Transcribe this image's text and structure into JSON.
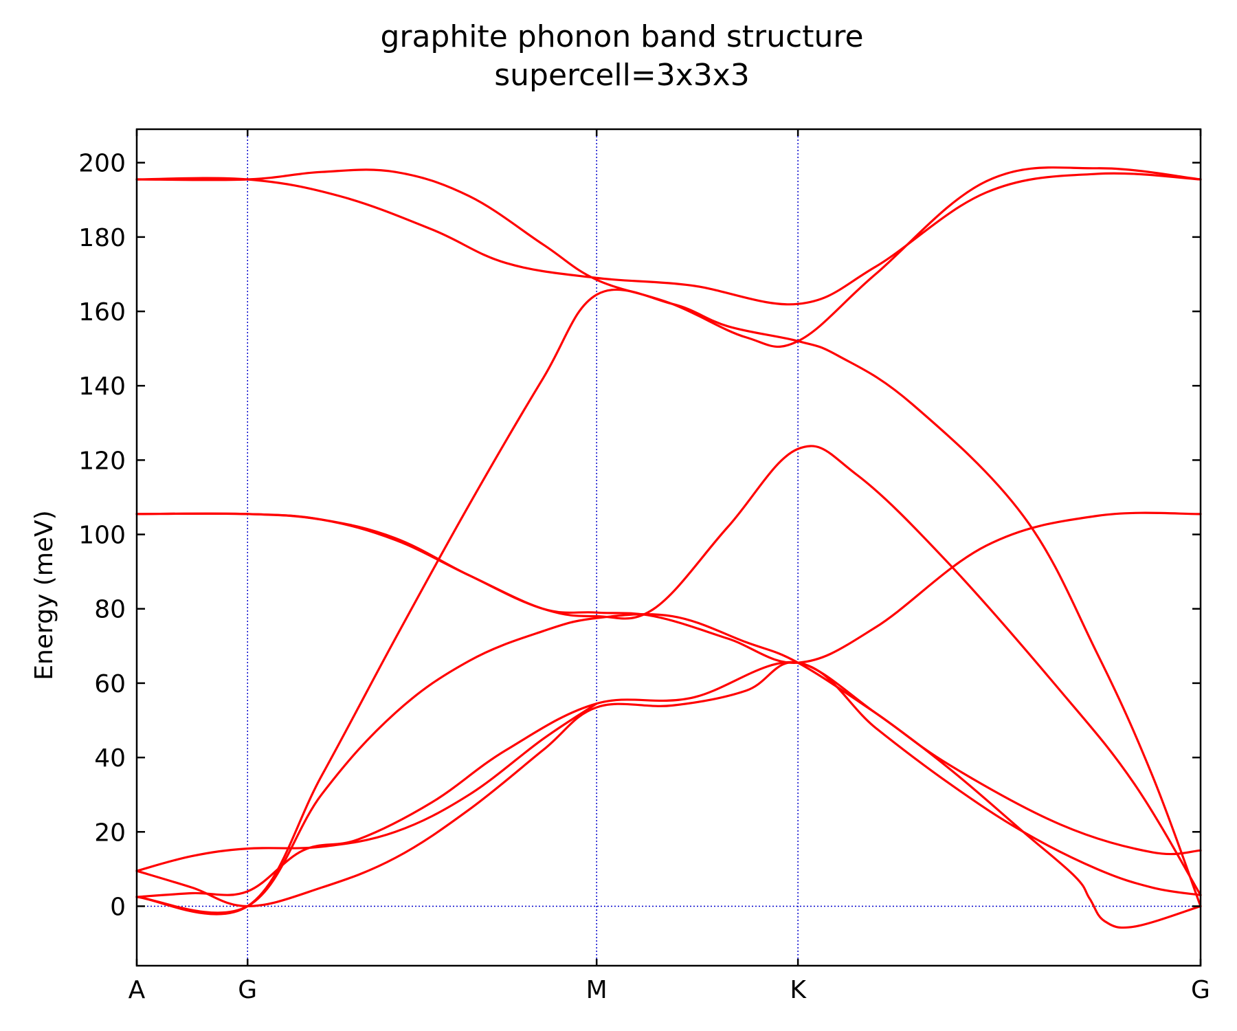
{
  "chart_data": {
    "type": "line",
    "title": "graphite phonon band structure",
    "subtitle": "supercell=3x3x3",
    "xlabel": "",
    "ylabel": "Energy (meV)",
    "ylim": [
      -16,
      209
    ],
    "yticks": [
      0,
      20,
      40,
      60,
      80,
      100,
      120,
      140,
      160,
      180,
      200
    ],
    "k_points": [
      {
        "label": "A",
        "x": 0.0
      },
      {
        "label": "G",
        "x": 0.3
      },
      {
        "label": "M",
        "x": 1.245
      },
      {
        "label": "K",
        "x": 1.79
      },
      {
        "label": "G",
        "x": 2.88
      }
    ],
    "line_color": "#ff0000",
    "guide_color": "#0000cc",
    "grid": false,
    "series": [
      {
        "x": [
          0,
          0.3,
          0.55,
          0.8,
          1.0,
          1.245,
          1.5,
          1.79,
          2.0,
          2.3,
          2.6,
          2.88
        ],
        "y": [
          195.5,
          195.5,
          191,
          182,
          173,
          169,
          167,
          162,
          172,
          192,
          197,
          195.5
        ]
      },
      {
        "x": [
          0,
          0.3,
          0.5,
          0.7,
          0.9,
          1.1,
          1.245,
          1.45,
          1.65,
          1.79,
          2.0,
          2.3,
          2.6,
          2.88
        ],
        "y": [
          195.5,
          195.5,
          197.5,
          197.5,
          191,
          178,
          168.5,
          162,
          153,
          152,
          170,
          195,
          198.5,
          195.5
        ]
      },
      {
        "x": [
          0,
          0.3,
          0.5,
          0.7,
          0.9,
          1.1,
          1.245,
          1.45,
          1.6,
          1.79,
          1.9,
          2.1,
          2.4,
          2.6,
          2.75,
          2.88
        ],
        "y": [
          2.5,
          0,
          35,
          72,
          108,
          142,
          164.5,
          162,
          156,
          152,
          148,
          135,
          105,
          68,
          35,
          0
        ]
      },
      {
        "x": [
          0,
          0.3,
          0.5,
          0.7,
          0.9,
          1.1,
          1.245,
          1.4,
          1.6,
          1.79,
          2.0,
          2.3,
          2.6,
          2.88
        ],
        "y": [
          105.5,
          105.5,
          104,
          99,
          89,
          80,
          79,
          78,
          72,
          65.5,
          75,
          97,
          105,
          105.5
        ]
      },
      {
        "x": [
          0,
          0.3,
          0.5,
          0.7,
          0.9,
          1.1,
          1.245,
          1.4,
          1.6,
          1.79,
          1.95,
          2.2,
          2.5,
          2.7,
          2.88
        ],
        "y": [
          105.5,
          105.5,
          104,
          98.5,
          89,
          80,
          78,
          80,
          102,
          123,
          116,
          92,
          58,
          33,
          3
        ]
      },
      {
        "x": [
          0,
          0.3,
          0.5,
          0.7,
          0.9,
          1.1,
          1.245,
          1.45,
          1.65,
          1.79,
          2.0,
          2.2,
          2.5,
          2.75,
          2.88
        ],
        "y": [
          2.5,
          0,
          30,
          52,
          66,
          74,
          77.5,
          78,
          71,
          65.5,
          52,
          38,
          22,
          14.5,
          15
        ]
      },
      {
        "x": [
          0,
          0.15,
          0.3,
          0.5,
          0.7,
          0.9,
          1.1,
          1.245,
          1.45,
          1.65,
          1.79,
          2.0,
          2.2,
          2.4,
          2.54,
          2.58,
          2.62,
          2.7,
          2.88
        ],
        "y": [
          9.5,
          5,
          0,
          5,
          13,
          26,
          42,
          53.5,
          54,
          58,
          65.5,
          52,
          37,
          20,
          8,
          2,
          -4,
          -5.5,
          0
        ]
      },
      {
        "x": [
          0,
          0.15,
          0.3,
          0.45,
          0.6,
          0.8,
          1.0,
          1.245,
          1.5,
          1.79,
          2.0,
          2.2,
          2.4,
          2.6,
          2.75,
          2.88
        ],
        "y": [
          2.5,
          3.5,
          4,
          15,
          18,
          28,
          42,
          54.5,
          56,
          65.5,
          48,
          33,
          20,
          10,
          5,
          3
        ]
      },
      {
        "x": [
          0,
          0.15,
          0.3,
          0.5,
          0.7,
          0.9,
          1.1,
          1.245
        ],
        "y": [
          9.5,
          13.5,
          15.5,
          16,
          20,
          30,
          45,
          54.5
        ]
      }
    ]
  }
}
